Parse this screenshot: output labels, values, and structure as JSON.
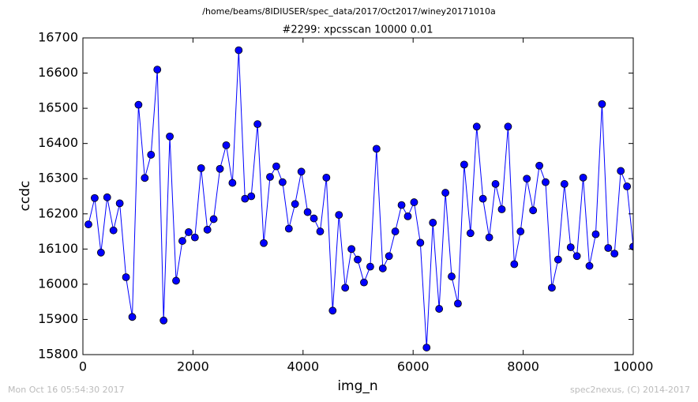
{
  "chart_data": {
    "type": "line",
    "title": "/home/beams/8IDIUSER/spec_data/2017/Oct2017/winey20171010a",
    "subtitle": "#2299: xpcsscan 10000 0.01",
    "xlabel": "img_n",
    "ylabel": "ccdc",
    "x": [
      100,
      214,
      328,
      441,
      555,
      669,
      783,
      897,
      1010,
      1124,
      1238,
      1352,
      1466,
      1579,
      1693,
      1807,
      1921,
      2035,
      2148,
      2262,
      2376,
      2490,
      2604,
      2717,
      2831,
      2945,
      3059,
      3173,
      3286,
      3400,
      3514,
      3628,
      3742,
      3855,
      3969,
      4083,
      4197,
      4311,
      4424,
      4538,
      4652,
      4766,
      4880,
      4993,
      5107,
      5221,
      5335,
      5449,
      5562,
      5676,
      5790,
      5904,
      6018,
      6131,
      6245,
      6359,
      6473,
      6587,
      6700,
      6814,
      6928,
      7042,
      7156,
      7269,
      7383,
      7497,
      7611,
      7725,
      7838,
      7952,
      8066,
      8180,
      8294,
      8407,
      8521,
      8635,
      8749,
      8863,
      8976,
      9090,
      9204,
      9318,
      9432,
      9545,
      9659,
      9773,
      9887,
      10000
    ],
    "series": [
      {
        "color": "#0000ff",
        "marker_color": "#0000ff",
        "values": [
          16170,
          16245,
          16090,
          16247,
          16153,
          16230,
          16020,
          15907,
          16510,
          16302,
          16368,
          16610,
          15897,
          16420,
          16010,
          16123,
          16148,
          16133,
          16330,
          16155,
          16185,
          16328,
          16395,
          16288,
          16665,
          16243,
          16250,
          16455,
          16117,
          16305,
          16335,
          16290,
          16158,
          16228,
          16320,
          16205,
          16187,
          16150,
          16303,
          15925,
          16197,
          15990,
          16100,
          16070,
          16005,
          16050,
          16385,
          16045,
          16080,
          16150,
          16225,
          16193,
          16233,
          16118,
          15820,
          16175,
          15930,
          16260,
          16022,
          15945,
          16340,
          16145,
          16448,
          16243,
          16133,
          16285,
          16213,
          16448,
          16057,
          16150,
          16300,
          16210,
          16337,
          16290,
          15990,
          16070,
          16285,
          16105,
          16080,
          16303,
          16052,
          16142,
          16512,
          16103,
          16087,
          16322,
          16278,
          16107
        ]
      }
    ],
    "xlim": [
      0,
      10000
    ],
    "ylim": [
      15800,
      16700
    ],
    "xticks": [
      0,
      2000,
      4000,
      6000,
      8000,
      10000
    ],
    "yticks": [
      15800,
      15900,
      16000,
      16100,
      16200,
      16300,
      16400,
      16500,
      16600,
      16700
    ],
    "grid": false
  },
  "footer": {
    "left": "Mon Oct 16 05:54:30 2017",
    "right": "spec2nexus, (C) 2014-2017"
  }
}
